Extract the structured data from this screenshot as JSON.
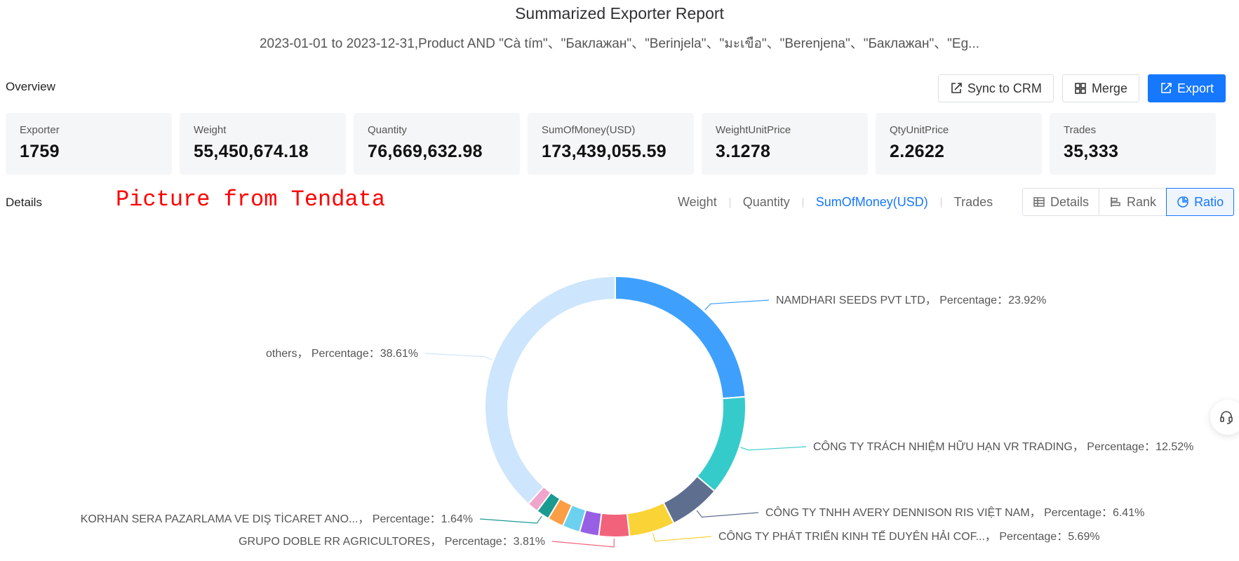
{
  "header": {
    "title": "Summarized Exporter Report",
    "subtitle": "2023-01-01 to 2023-12-31,Product AND \"Cà tím\"、\"Баклажан\"、\"Berinjela\"、\"มะเขือ\"、\"Berenjena\"、\"Баклажан\"、\"Eg..."
  },
  "overview": {
    "label": "Overview",
    "buttons": {
      "sync": "Sync to CRM",
      "merge": "Merge",
      "export": "Export"
    },
    "cards": [
      {
        "label": "Exporter",
        "value": "1759"
      },
      {
        "label": "Weight",
        "value": "55,450,674.18"
      },
      {
        "label": "Quantity",
        "value": "76,669,632.98"
      },
      {
        "label": "SumOfMoney(USD)",
        "value": "173,439,055.59"
      },
      {
        "label": "WeightUnitPrice",
        "value": "3.1278"
      },
      {
        "label": "QtyUnitPrice",
        "value": "2.2622"
      },
      {
        "label": "Trades",
        "value": "35,333"
      }
    ]
  },
  "details": {
    "label": "Details",
    "watermark": "Picture from Tendata",
    "metric_tabs": [
      "Weight",
      "Quantity",
      "SumOfMoney(USD)",
      "Trades"
    ],
    "active_metric": "SumOfMoney(USD)",
    "views": [
      "Details",
      "Rank",
      "Ratio"
    ],
    "active_view": "Ratio"
  },
  "chart_data": {
    "type": "pie",
    "variant": "donut",
    "percent_label": "Percentage",
    "slices": [
      {
        "name": "NAMDHARI SEEDS PVT LTD",
        "value": 23.92,
        "color": "#3ea0fc",
        "show_label": true
      },
      {
        "name": "CÔNG TY TRÁCH NHIỆM HỮU HẠN VR TRADING",
        "value": 12.52,
        "color": "#36cbcb",
        "show_label": true
      },
      {
        "name": "CÔNG TY TNHH AVERY DENNISON RIS VIỆT NAM",
        "value": 6.41,
        "color": "#5e6e8f",
        "show_label": true
      },
      {
        "name": "CÔNG TY PHÁT TRIỂN KINH TẾ DUYÊN HẢI COF...",
        "value": 5.69,
        "color": "#fad337",
        "show_label": true
      },
      {
        "name": "GRUPO DOBLE RR AGRICULTORES",
        "value": 3.81,
        "color": "#f2637b",
        "show_label": true
      },
      {
        "name": "",
        "value": 2.4,
        "color": "#975fe4",
        "show_label": false
      },
      {
        "name": "",
        "value": 2.2,
        "color": "#6cd1ee",
        "show_label": false
      },
      {
        "name": "",
        "value": 2.0,
        "color": "#fb9e46",
        "show_label": false
      },
      {
        "name": "KORHAN SERA PAZARLAMA VE DIŞ TİCARET ANO...",
        "value": 1.64,
        "color": "#1a9a91",
        "show_label": true
      },
      {
        "name": "",
        "value": 1.4,
        "color": "#f0a5cd",
        "show_label": false
      },
      {
        "name": "others",
        "value": 38.61,
        "color": "#cde5fd",
        "show_label": true
      }
    ]
  },
  "icons": {
    "sync": "sync-crm-icon",
    "merge": "merge-icon",
    "export": "export-icon",
    "details": "table-icon",
    "rank": "rank-icon",
    "ratio": "pie-icon",
    "help": "headset-icon"
  }
}
